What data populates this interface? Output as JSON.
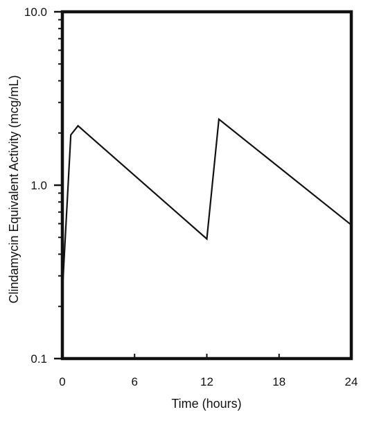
{
  "chart_data": {
    "type": "line",
    "title": "",
    "xlabel": "Time (hours)",
    "ylabel": "Clindamycin Equivalent Activity (mcg/mL)",
    "xlim": [
      0,
      24
    ],
    "ylim": [
      0.1,
      10.0
    ],
    "yscale": "log",
    "grid": false,
    "legend": "none",
    "x_ticks": [
      0,
      6,
      12,
      18,
      24
    ],
    "x_tick_labels": [
      "0",
      "6",
      "12",
      "18",
      "24"
    ],
    "y_ticks": [
      0.1,
      1.0,
      10.0
    ],
    "y_tick_labels": [
      "0.1",
      "1.0",
      "10.0"
    ],
    "series": [
      {
        "x": [
          0,
          0.15,
          0.7,
          1.3,
          12,
          13,
          24
        ],
        "y": [
          0.24,
          0.38,
          1.95,
          2.2,
          0.49,
          2.4,
          0.59
        ]
      }
    ],
    "colors": {
      "line": "#111111",
      "frame": "#111111"
    }
  }
}
